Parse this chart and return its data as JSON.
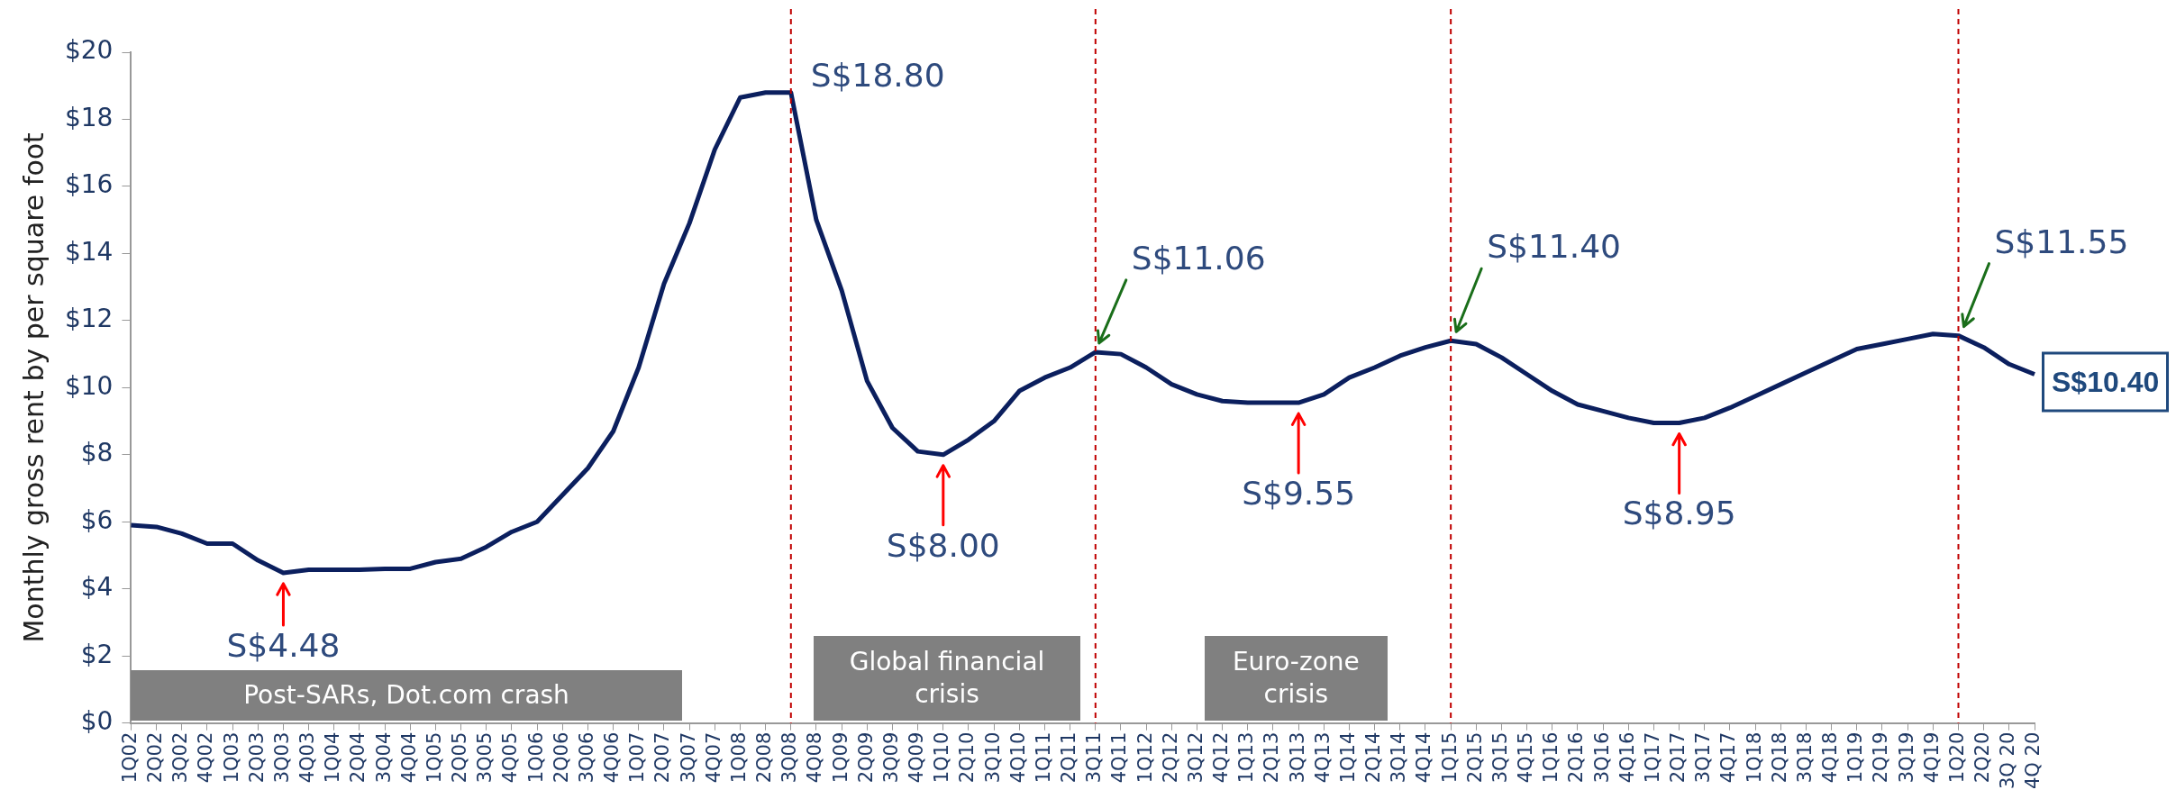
{
  "chart_data": {
    "type": "line",
    "ylabel": "Monthly gross rent by per square foot",
    "categories": [
      "1Q02",
      "2Q02",
      "3Q02",
      "4Q02",
      "1Q03",
      "2Q03",
      "3Q03",
      "4Q03",
      "1Q04",
      "2Q04",
      "3Q04",
      "4Q04",
      "1Q05",
      "2Q05",
      "3Q05",
      "4Q05",
      "1Q06",
      "2Q06",
      "3Q06",
      "4Q06",
      "1Q07",
      "2Q07",
      "3Q07",
      "4Q07",
      "1Q08",
      "2Q08",
      "3Q08",
      "4Q08",
      "1Q09",
      "2Q09",
      "3Q09",
      "4Q09",
      "1Q10",
      "2Q10",
      "3Q10",
      "4Q10",
      "1Q11",
      "2Q11",
      "3Q11",
      "4Q11",
      "1Q12",
      "2Q12",
      "3Q12",
      "4Q12",
      "1Q13",
      "2Q13",
      "3Q13",
      "4Q13",
      "1Q14",
      "2Q14",
      "3Q14",
      "4Q14",
      "1Q15",
      "2Q15",
      "3Q15",
      "4Q15",
      "1Q16",
      "2Q16",
      "3Q16",
      "4Q16",
      "1Q17",
      "2Q17",
      "3Q17",
      "4Q17",
      "1Q18",
      "2Q18",
      "3Q18",
      "4Q18",
      "1Q19",
      "2Q19",
      "3Q19",
      "4Q19",
      "1Q20",
      "2Q20",
      "3Q 20",
      "4Q 20"
    ],
    "series": [
      {
        "color": "#0b1f5e",
        "values": [
          5.9,
          5.85,
          5.65,
          5.35,
          5.35,
          4.85,
          4.48,
          4.57,
          4.57,
          4.57,
          4.6,
          4.6,
          4.8,
          4.9,
          5.25,
          5.7,
          6.0,
          6.8,
          7.6,
          8.7,
          10.6,
          13.1,
          14.9,
          17.1,
          18.65,
          18.8,
          18.8,
          15.0,
          12.9,
          10.2,
          8.8,
          8.1,
          8.0,
          8.45,
          9.0,
          9.9,
          10.3,
          10.6,
          11.06,
          11.0,
          10.6,
          10.1,
          9.8,
          9.6,
          9.55,
          9.55,
          9.55,
          9.8,
          10.3,
          10.6,
          10.95,
          11.2,
          11.4,
          11.3,
          10.9,
          10.4,
          9.9,
          9.5,
          9.3,
          9.1,
          8.95,
          8.95,
          9.1,
          9.4,
          9.75,
          10.1,
          10.45,
          10.8,
          11.15,
          11.3,
          11.45,
          11.6,
          11.55,
          11.2,
          10.7,
          10.4
        ]
      }
    ],
    "ylim": [
      0,
      20
    ],
    "yticks": [
      {
        "value": 0,
        "label": "$0"
      },
      {
        "value": 2,
        "label": "$2"
      },
      {
        "value": 4,
        "label": "$4"
      },
      {
        "value": 6,
        "label": "$6"
      },
      {
        "value": 8,
        "label": "$8"
      },
      {
        "value": 10,
        "label": "$10"
      },
      {
        "value": 12,
        "label": "$12"
      },
      {
        "value": 14,
        "label": "$14"
      },
      {
        "value": 16,
        "label": "$16"
      },
      {
        "value": 18,
        "label": "$18"
      },
      {
        "value": 20,
        "label": "$20"
      }
    ],
    "grid": false,
    "legend": false,
    "marker": "none",
    "line_style": "solid",
    "ref_lines": [
      {
        "axis": "x",
        "value": "3Q08",
        "color": "#c00000",
        "line_style": "dashed"
      },
      {
        "axis": "x",
        "value": "3Q11",
        "color": "#c00000",
        "line_style": "dashed"
      },
      {
        "axis": "x",
        "value": "1Q15",
        "color": "#c00000",
        "line_style": "dashed"
      },
      {
        "axis": "x",
        "value": "1Q20",
        "color": "#c00000",
        "line_style": "dashed"
      }
    ],
    "annotations": [
      {
        "text": "S$18.80",
        "x": "3Q08",
        "y": 18.8
      },
      {
        "text": "S$4.48",
        "x": "3Q03",
        "y": 4.48
      },
      {
        "text": "S$8.00",
        "x": "1Q10",
        "y": 8.0
      },
      {
        "text": "S$11.06",
        "x": "3Q11",
        "y": 11.06
      },
      {
        "text": "S$9.55",
        "x": "3Q13",
        "y": 9.55
      },
      {
        "text": "S$11.40",
        "x": "1Q15",
        "y": 11.4
      },
      {
        "text": "S$8.95",
        "x": "2Q17",
        "y": 8.95
      },
      {
        "text": "S$11.55",
        "x": "1Q20",
        "y": 11.55
      },
      {
        "text": "S$10.40",
        "x": "4Q 20",
        "y": 10.4
      },
      "Post-SARs, Dot.com crash",
      "Global financial crisis",
      "Euro-zone crisis"
    ]
  }
}
